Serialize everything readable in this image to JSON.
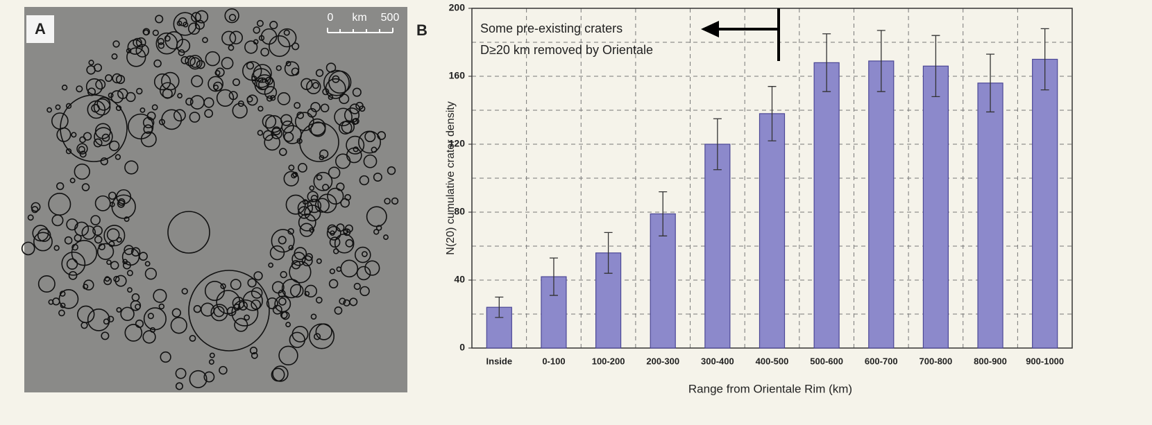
{
  "panel_a": {
    "label": "A",
    "scale_bar": {
      "start": 0,
      "unit": "km",
      "end": 500
    }
  },
  "chart_data": {
    "type": "bar",
    "panel_label": "B",
    "y_label": "N(20) cumulative crater density",
    "x_label": "Range from Orientale Rim (km)",
    "annotation": [
      "Some pre-existing craters",
      "D≥20 km removed by Orientale"
    ],
    "categories": [
      "Inside",
      "0-100",
      "100-200",
      "200-300",
      "300-400",
      "400-500",
      "500-600",
      "600-700",
      "700-800",
      "800-900",
      "900-1000"
    ],
    "values": [
      24,
      42,
      56,
      79,
      120,
      138,
      168,
      169,
      166,
      156,
      170
    ],
    "errors": [
      6,
      11,
      12,
      13,
      15,
      16,
      17,
      18,
      18,
      17,
      18
    ],
    "color": "#8c89cb",
    "ylim": [
      0,
      200
    ],
    "yticks": [
      0,
      40,
      80,
      120,
      160,
      200
    ],
    "minor_yticks": [
      20,
      60,
      100,
      140,
      180
    ],
    "grid": true
  }
}
